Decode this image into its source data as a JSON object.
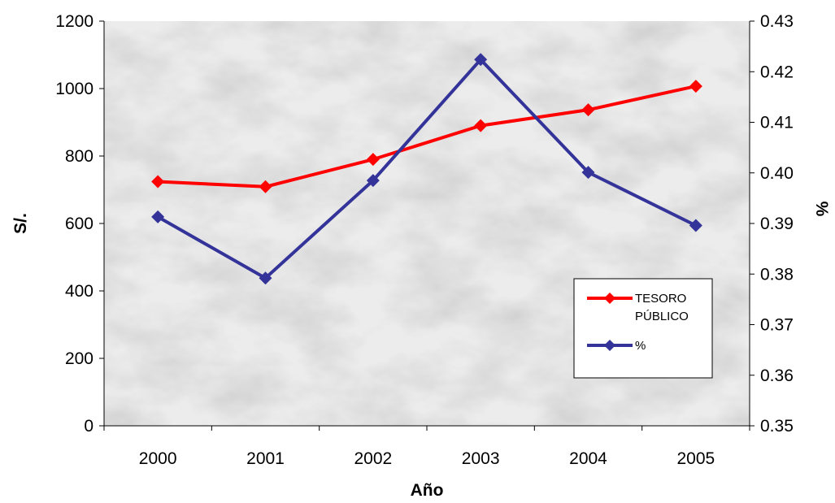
{
  "chart_data": {
    "type": "line",
    "title": "",
    "xlabel": "Año",
    "ylabel": "S/.",
    "y2label": "%",
    "categories": [
      "2000",
      "2001",
      "2002",
      "2003",
      "2004",
      "2005"
    ],
    "ylim": [
      0,
      1200
    ],
    "y2lim": [
      0.35,
      0.43
    ],
    "yticks": [
      "0",
      "200",
      "400",
      "600",
      "800",
      "1000",
      "1200"
    ],
    "y2ticks": [
      "0.35",
      "0.36",
      "0.37",
      "0.38",
      "0.39",
      "0.40",
      "0.41",
      "0.42",
      "0.43"
    ],
    "grid": false,
    "legend_position": "right",
    "series": [
      {
        "name": "TESORO PÚBLICO",
        "legend_lines": [
          "TESORO",
          "PÚBLICO"
        ],
        "axis": "left",
        "color": "#ff0000",
        "marker": "diamond",
        "values": [
          724,
          709,
          790,
          890,
          937,
          1007
        ]
      },
      {
        "name": "%",
        "legend_lines": [
          "%"
        ],
        "axis": "right",
        "color": "#333399",
        "marker": "diamond",
        "values": [
          0.3913,
          0.3792,
          0.3985,
          0.4224,
          0.4001,
          0.3896
        ]
      }
    ]
  }
}
